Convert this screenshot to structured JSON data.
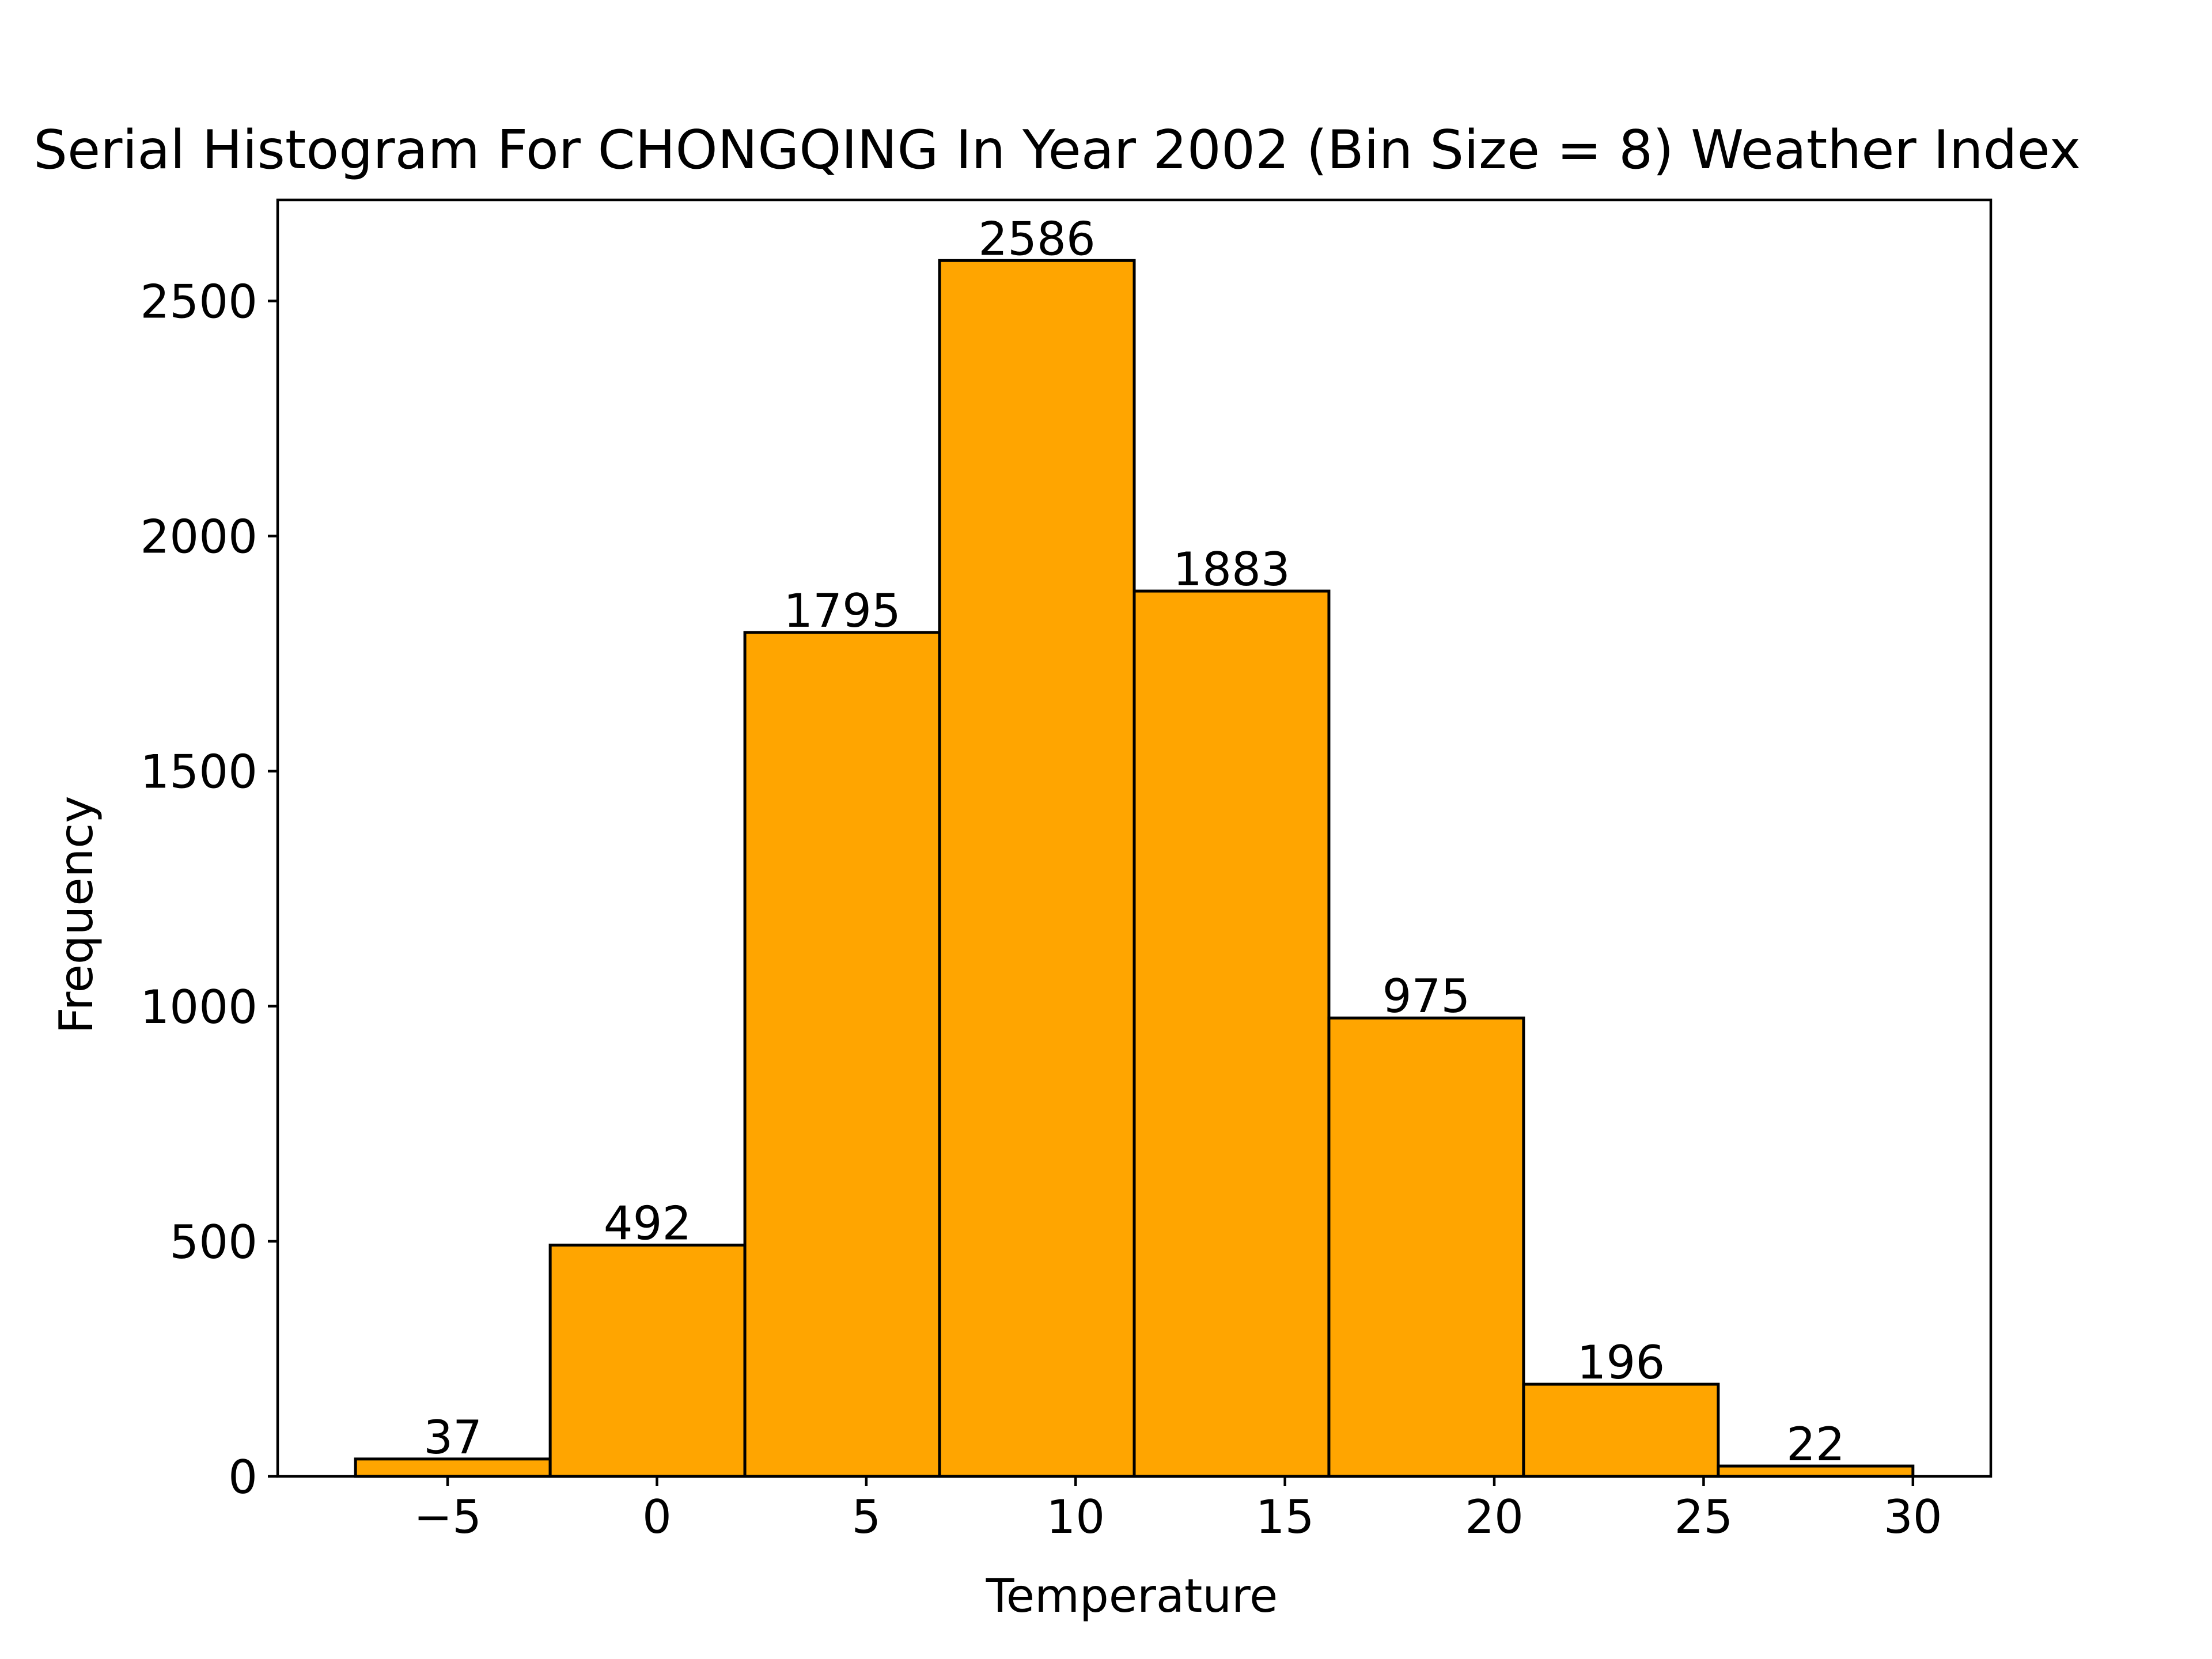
{
  "chart_data": {
    "type": "bar",
    "title": "Serial Histogram For CHONGQING In Year 2002 (Bin Size = 8) Weather Index",
    "xlabel": "Temperature",
    "ylabel": "Frequency",
    "bar_color": "#FFA500",
    "edge_color": "#000000",
    "bins": [
      {
        "start": -7.2,
        "end": -2.55,
        "value": 37
      },
      {
        "start": -2.55,
        "end": 2.1,
        "value": 492
      },
      {
        "start": 2.1,
        "end": 6.75,
        "value": 1795
      },
      {
        "start": 6.75,
        "end": 11.4,
        "value": 2586
      },
      {
        "start": 11.4,
        "end": 16.05,
        "value": 1883
      },
      {
        "start": 16.05,
        "end": 20.7,
        "value": 975
      },
      {
        "start": 20.7,
        "end": 25.35,
        "value": 196
      },
      {
        "start": 25.35,
        "end": 30.0,
        "value": 22
      }
    ],
    "data_labels": [
      "37",
      "492",
      "1795",
      "2586",
      "1883",
      "975",
      "196",
      "22"
    ],
    "xlim": [
      -9.06,
      31.86
    ],
    "ylim": [
      0,
      2715
    ],
    "xticks": [
      -5,
      0,
      5,
      10,
      15,
      20,
      25,
      30
    ],
    "xtick_labels": [
      "−5",
      "0",
      "5",
      "10",
      "15",
      "20",
      "25",
      "30"
    ],
    "yticks": [
      0,
      500,
      1000,
      1500,
      2000,
      2500
    ],
    "ytick_labels": [
      "0",
      "500",
      "1000",
      "1500",
      "2000",
      "2500"
    ],
    "grid": false,
    "legend": "none"
  }
}
